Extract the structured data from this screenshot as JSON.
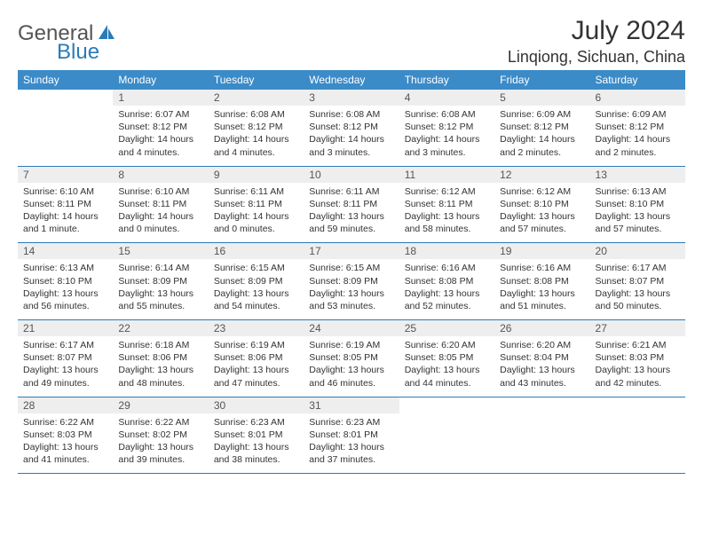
{
  "brand": {
    "part1": "General",
    "part2": "Blue"
  },
  "title": "July 2024",
  "location": "Linqiong, Sichuan, China",
  "colors": {
    "header_bg": "#3b8bc8",
    "border": "#2b7bb9",
    "daynum_bg": "#eeeeee",
    "text": "#333333",
    "brand_blue": "#2b7bb9"
  },
  "typography": {
    "title_fontsize": 30,
    "location_fontsize": 18,
    "dayheader_fontsize": 12,
    "cell_fontsize": 10.5
  },
  "dayHeaders": [
    "Sunday",
    "Monday",
    "Tuesday",
    "Wednesday",
    "Thursday",
    "Friday",
    "Saturday"
  ],
  "weeks": [
    [
      null,
      {
        "n": "1",
        "sr": "Sunrise: 6:07 AM",
        "ss": "Sunset: 8:12 PM",
        "dl": "Daylight: 14 hours and 4 minutes."
      },
      {
        "n": "2",
        "sr": "Sunrise: 6:08 AM",
        "ss": "Sunset: 8:12 PM",
        "dl": "Daylight: 14 hours and 4 minutes."
      },
      {
        "n": "3",
        "sr": "Sunrise: 6:08 AM",
        "ss": "Sunset: 8:12 PM",
        "dl": "Daylight: 14 hours and 3 minutes."
      },
      {
        "n": "4",
        "sr": "Sunrise: 6:08 AM",
        "ss": "Sunset: 8:12 PM",
        "dl": "Daylight: 14 hours and 3 minutes."
      },
      {
        "n": "5",
        "sr": "Sunrise: 6:09 AM",
        "ss": "Sunset: 8:12 PM",
        "dl": "Daylight: 14 hours and 2 minutes."
      },
      {
        "n": "6",
        "sr": "Sunrise: 6:09 AM",
        "ss": "Sunset: 8:12 PM",
        "dl": "Daylight: 14 hours and 2 minutes."
      }
    ],
    [
      {
        "n": "7",
        "sr": "Sunrise: 6:10 AM",
        "ss": "Sunset: 8:11 PM",
        "dl": "Daylight: 14 hours and 1 minute."
      },
      {
        "n": "8",
        "sr": "Sunrise: 6:10 AM",
        "ss": "Sunset: 8:11 PM",
        "dl": "Daylight: 14 hours and 0 minutes."
      },
      {
        "n": "9",
        "sr": "Sunrise: 6:11 AM",
        "ss": "Sunset: 8:11 PM",
        "dl": "Daylight: 14 hours and 0 minutes."
      },
      {
        "n": "10",
        "sr": "Sunrise: 6:11 AM",
        "ss": "Sunset: 8:11 PM",
        "dl": "Daylight: 13 hours and 59 minutes."
      },
      {
        "n": "11",
        "sr": "Sunrise: 6:12 AM",
        "ss": "Sunset: 8:11 PM",
        "dl": "Daylight: 13 hours and 58 minutes."
      },
      {
        "n": "12",
        "sr": "Sunrise: 6:12 AM",
        "ss": "Sunset: 8:10 PM",
        "dl": "Daylight: 13 hours and 57 minutes."
      },
      {
        "n": "13",
        "sr": "Sunrise: 6:13 AM",
        "ss": "Sunset: 8:10 PM",
        "dl": "Daylight: 13 hours and 57 minutes."
      }
    ],
    [
      {
        "n": "14",
        "sr": "Sunrise: 6:13 AM",
        "ss": "Sunset: 8:10 PM",
        "dl": "Daylight: 13 hours and 56 minutes."
      },
      {
        "n": "15",
        "sr": "Sunrise: 6:14 AM",
        "ss": "Sunset: 8:09 PM",
        "dl": "Daylight: 13 hours and 55 minutes."
      },
      {
        "n": "16",
        "sr": "Sunrise: 6:15 AM",
        "ss": "Sunset: 8:09 PM",
        "dl": "Daylight: 13 hours and 54 minutes."
      },
      {
        "n": "17",
        "sr": "Sunrise: 6:15 AM",
        "ss": "Sunset: 8:09 PM",
        "dl": "Daylight: 13 hours and 53 minutes."
      },
      {
        "n": "18",
        "sr": "Sunrise: 6:16 AM",
        "ss": "Sunset: 8:08 PM",
        "dl": "Daylight: 13 hours and 52 minutes."
      },
      {
        "n": "19",
        "sr": "Sunrise: 6:16 AM",
        "ss": "Sunset: 8:08 PM",
        "dl": "Daylight: 13 hours and 51 minutes."
      },
      {
        "n": "20",
        "sr": "Sunrise: 6:17 AM",
        "ss": "Sunset: 8:07 PM",
        "dl": "Daylight: 13 hours and 50 minutes."
      }
    ],
    [
      {
        "n": "21",
        "sr": "Sunrise: 6:17 AM",
        "ss": "Sunset: 8:07 PM",
        "dl": "Daylight: 13 hours and 49 minutes."
      },
      {
        "n": "22",
        "sr": "Sunrise: 6:18 AM",
        "ss": "Sunset: 8:06 PM",
        "dl": "Daylight: 13 hours and 48 minutes."
      },
      {
        "n": "23",
        "sr": "Sunrise: 6:19 AM",
        "ss": "Sunset: 8:06 PM",
        "dl": "Daylight: 13 hours and 47 minutes."
      },
      {
        "n": "24",
        "sr": "Sunrise: 6:19 AM",
        "ss": "Sunset: 8:05 PM",
        "dl": "Daylight: 13 hours and 46 minutes."
      },
      {
        "n": "25",
        "sr": "Sunrise: 6:20 AM",
        "ss": "Sunset: 8:05 PM",
        "dl": "Daylight: 13 hours and 44 minutes."
      },
      {
        "n": "26",
        "sr": "Sunrise: 6:20 AM",
        "ss": "Sunset: 8:04 PM",
        "dl": "Daylight: 13 hours and 43 minutes."
      },
      {
        "n": "27",
        "sr": "Sunrise: 6:21 AM",
        "ss": "Sunset: 8:03 PM",
        "dl": "Daylight: 13 hours and 42 minutes."
      }
    ],
    [
      {
        "n": "28",
        "sr": "Sunrise: 6:22 AM",
        "ss": "Sunset: 8:03 PM",
        "dl": "Daylight: 13 hours and 41 minutes."
      },
      {
        "n": "29",
        "sr": "Sunrise: 6:22 AM",
        "ss": "Sunset: 8:02 PM",
        "dl": "Daylight: 13 hours and 39 minutes."
      },
      {
        "n": "30",
        "sr": "Sunrise: 6:23 AM",
        "ss": "Sunset: 8:01 PM",
        "dl": "Daylight: 13 hours and 38 minutes."
      },
      {
        "n": "31",
        "sr": "Sunrise: 6:23 AM",
        "ss": "Sunset: 8:01 PM",
        "dl": "Daylight: 13 hours and 37 minutes."
      },
      null,
      null,
      null
    ]
  ]
}
